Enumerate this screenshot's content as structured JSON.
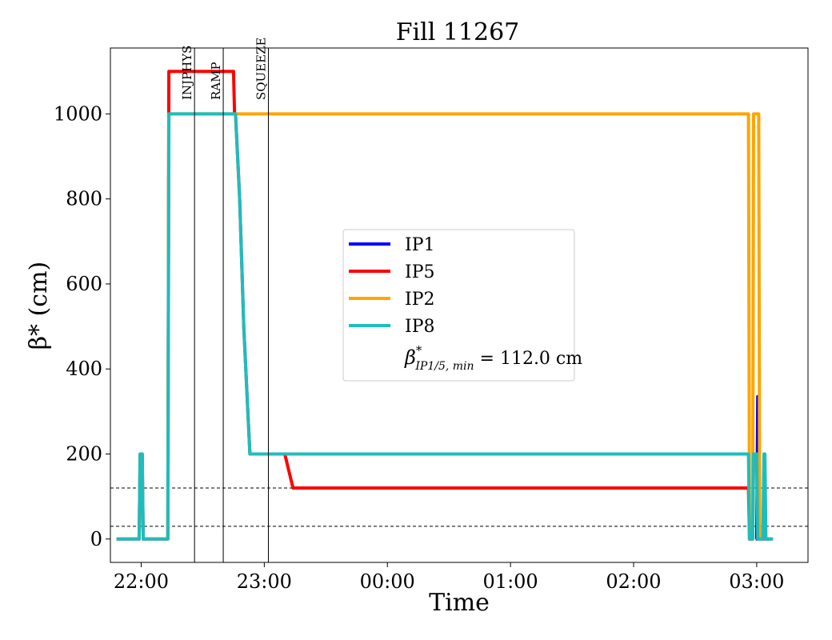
{
  "chart_data": {
    "type": "line",
    "title": "Fill 11267",
    "xlabel": "Time",
    "ylabel": "β* (cm)",
    "xlim": [
      "21:45",
      "03:25"
    ],
    "ylim": [
      -55,
      1155
    ],
    "x_ticks": [
      "22:00",
      "23:00",
      "00:00",
      "01:00",
      "02:00",
      "03:00"
    ],
    "y_ticks": [
      0,
      200,
      400,
      600,
      800,
      1000
    ],
    "grid": false,
    "legend_position": "center",
    "series": [
      {
        "name": "IP1",
        "color": "#0000ff",
        "points": [
          [
            "02:59:30",
            0
          ],
          [
            "03:00:00",
            0
          ],
          [
            "03:00:30",
            335
          ],
          [
            "03:01:00",
            335
          ],
          [
            "03:01:30",
            0
          ]
        ]
      },
      {
        "name": "IP5",
        "color": "#ff0000",
        "points": [
          [
            "21:48",
            0
          ],
          [
            "21:59",
            0
          ],
          [
            "21:59:30",
            200
          ],
          [
            "22:00:30",
            200
          ],
          [
            "22:01",
            0
          ],
          [
            "22:13",
            0
          ],
          [
            "22:13:30",
            1100
          ],
          [
            "22:45",
            1100
          ],
          [
            "22:45:30",
            1000
          ],
          [
            "22:46",
            1000
          ],
          [
            "22:48",
            800
          ],
          [
            "22:50",
            500
          ],
          [
            "22:52",
            300
          ],
          [
            "22:53",
            200
          ],
          [
            "23:10",
            200
          ],
          [
            "23:12",
            160
          ],
          [
            "23:14",
            120
          ],
          [
            "02:56",
            120
          ],
          [
            "02:56:30",
            0
          ],
          [
            "02:58",
            0
          ],
          [
            "02:58:30",
            200
          ],
          [
            "03:00",
            200
          ],
          [
            "03:00:30",
            0
          ],
          [
            "03:07",
            0
          ]
        ]
      },
      {
        "name": "IP2",
        "color": "#ffa500",
        "points": [
          [
            "22:13",
            0
          ],
          [
            "22:13:30",
            1000
          ],
          [
            "02:56",
            1000
          ],
          [
            "02:56:30",
            0
          ],
          [
            "02:58",
            0
          ],
          [
            "02:58:30",
            1000
          ],
          [
            "03:01",
            1000
          ],
          [
            "03:01:30",
            0
          ],
          [
            "03:03",
            0
          ]
        ]
      },
      {
        "name": "IP8",
        "color": "#1ebdbd",
        "points": [
          [
            "21:48",
            0
          ],
          [
            "21:59",
            0
          ],
          [
            "21:59:30",
            200
          ],
          [
            "22:00:30",
            200
          ],
          [
            "22:01",
            0
          ],
          [
            "22:13",
            0
          ],
          [
            "22:13:30",
            1000
          ],
          [
            "22:46",
            1000
          ],
          [
            "22:48",
            800
          ],
          [
            "22:50",
            500
          ],
          [
            "22:52",
            300
          ],
          [
            "22:53",
            200
          ],
          [
            "02:56",
            200
          ],
          [
            "02:56:30",
            0
          ],
          [
            "02:58",
            0
          ],
          [
            "02:58:30",
            200
          ],
          [
            "03:00",
            200
          ],
          [
            "03:00:30",
            0
          ],
          [
            "03:03",
            0
          ],
          [
            "03:03:30",
            200
          ],
          [
            "03:04",
            200
          ],
          [
            "03:04:30",
            0
          ],
          [
            "03:08",
            0
          ]
        ]
      }
    ],
    "phase_markers": [
      {
        "label": "INJPHYS",
        "time": "22:26"
      },
      {
        "label": "RAMP",
        "time": "22:40"
      },
      {
        "label": "SQUEEZE",
        "time": "23:02"
      }
    ],
    "reference_lines": [
      {
        "value": 120,
        "style": "dashed",
        "color": "#000000"
      },
      {
        "value": 30,
        "style": "dashed",
        "color": "#000000"
      }
    ],
    "legend_extra": {
      "symbol": "β",
      "superscript": "*",
      "subscript": "IP1/5, min",
      "text": " = 112.0 cm"
    }
  }
}
